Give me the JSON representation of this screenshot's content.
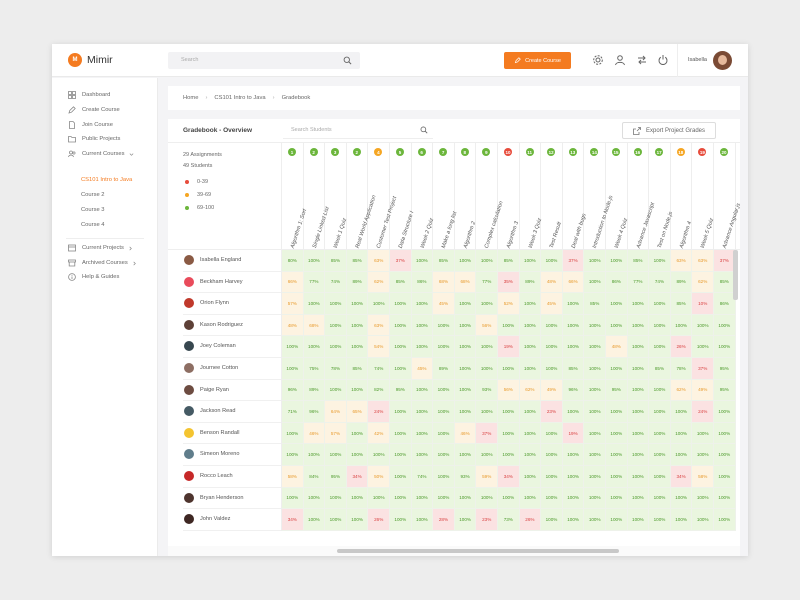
{
  "app": {
    "logo_letter": "M",
    "title": "Mimir"
  },
  "search": {
    "placeholder": "Search"
  },
  "header": {
    "create_label": "Create Course",
    "user_name": "Isabella"
  },
  "colors": {
    "accent": "#f47b20",
    "green": "#6cb63c",
    "orange": "#f5a623",
    "red": "#e74c3c"
  },
  "sidebar": {
    "items": [
      {
        "label": "Dashboard",
        "icon": "dashboard-icon"
      },
      {
        "label": "Create Course",
        "icon": "pen-icon"
      },
      {
        "label": "Join Course",
        "icon": "document-icon"
      },
      {
        "label": "Public Projects",
        "icon": "folder-icon"
      },
      {
        "label": "Current Courses",
        "icon": "users-icon"
      }
    ],
    "courses": [
      "CS101 Intro to Java",
      "Course 2",
      "Course 3",
      "Course 4"
    ],
    "bottom_items": [
      {
        "label": "Current Projects",
        "icon": "projects-icon"
      },
      {
        "label": "Archived Courses",
        "icon": "archive-icon"
      },
      {
        "label": "Help & Guides",
        "icon": "info-icon"
      }
    ]
  },
  "breadcrumb": [
    "Home",
    "CS101 Intro to Java",
    "Gradebook"
  ],
  "gradebook": {
    "title": "Gradebook - Overview",
    "search_placeholder": "Search Students",
    "export_label": "Export Project Grades",
    "assignments": "29 Assignments",
    "students": "49 Students",
    "legend": [
      {
        "label": "0-39",
        "color": "#e74c3c"
      },
      {
        "label": "39-69",
        "color": "#f5a623"
      },
      {
        "label": "69-100",
        "color": "#6cb63c"
      }
    ],
    "columns": [
      {
        "n": "1",
        "name": "Algorithm 1: Sort",
        "status": "g"
      },
      {
        "n": "2",
        "name": "Single Linked List",
        "status": "g"
      },
      {
        "n": "3",
        "name": "Week 1 Quiz",
        "status": "g"
      },
      {
        "n": "2",
        "name": "Real World Application",
        "status": "g"
      },
      {
        "n": "4",
        "name": "Customer Test Project",
        "status": "y"
      },
      {
        "n": "5",
        "name": "Data Structure I",
        "status": "g"
      },
      {
        "n": "6",
        "name": "Week 2 Quiz",
        "status": "g"
      },
      {
        "n": "7",
        "name": "Make a long list",
        "status": "g"
      },
      {
        "n": "8",
        "name": "Algorithm 2",
        "status": "g"
      },
      {
        "n": "9",
        "name": "Complex calculation",
        "status": "g"
      },
      {
        "n": "10",
        "name": "Algorithm 3",
        "status": "r"
      },
      {
        "n": "11",
        "name": "Week 3 Quiz",
        "status": "g"
      },
      {
        "n": "12",
        "name": "Test Result",
        "status": "g"
      },
      {
        "n": "13",
        "name": "Deal with bugs",
        "status": "g"
      },
      {
        "n": "14",
        "name": "Introduction to Node.js",
        "status": "g"
      },
      {
        "n": "15",
        "name": "Week 4 Quiz",
        "status": "g"
      },
      {
        "n": "16",
        "name": "Advance Javascript",
        "status": "g"
      },
      {
        "n": "17",
        "name": "Test on Node.js",
        "status": "g"
      },
      {
        "n": "18",
        "name": "Algorithm 4",
        "status": "y"
      },
      {
        "n": "19",
        "name": "Week 5 Quiz",
        "status": "r"
      },
      {
        "n": "20",
        "name": "Advance Angular.js",
        "status": "g"
      }
    ],
    "students_list": [
      {
        "name": "Isabella England",
        "avatar": "#8a5a44",
        "grades": [
          "80%",
          "100%",
          "85%",
          "85%",
          "63%",
          "37%",
          "100%",
          "85%",
          "100%",
          "100%",
          "85%",
          "100%",
          "100%",
          "37%",
          "100%",
          "100%",
          "85%",
          "100%",
          "63%",
          "63%",
          "37%"
        ]
      },
      {
        "name": "Beckham Harvey",
        "avatar": "#e94b5b",
        "grades": [
          "66%",
          "77%",
          "74%",
          "89%",
          "62%",
          "85%",
          "86%",
          "68%",
          "68%",
          "77%",
          "35%",
          "89%",
          "48%",
          "66%",
          "100%",
          "86%",
          "77%",
          "74%",
          "89%",
          "62%",
          "85%"
        ]
      },
      {
        "name": "Orion Flynn",
        "avatar": "#c0392b",
        "grades": [
          "57%",
          "100%",
          "100%",
          "100%",
          "100%",
          "100%",
          "100%",
          "45%",
          "100%",
          "100%",
          "52%",
          "100%",
          "45%",
          "100%",
          "85%",
          "100%",
          "100%",
          "100%",
          "85%",
          "10%",
          "86%"
        ]
      },
      {
        "name": "Kason Rodriguez",
        "avatar": "#5d4037",
        "grades": [
          "48%",
          "68%",
          "100%",
          "100%",
          "63%",
          "100%",
          "100%",
          "100%",
          "100%",
          "56%",
          "100%",
          "100%",
          "100%",
          "100%",
          "100%",
          "100%",
          "100%",
          "100%",
          "100%",
          "100%",
          "100%"
        ]
      },
      {
        "name": "Joey Coleman",
        "avatar": "#37474f",
        "grades": [
          "100%",
          "100%",
          "100%",
          "100%",
          "54%",
          "100%",
          "100%",
          "100%",
          "100%",
          "100%",
          "19%",
          "100%",
          "100%",
          "100%",
          "100%",
          "48%",
          "100%",
          "100%",
          "26%",
          "100%",
          "100%"
        ]
      },
      {
        "name": "Journee Cotton",
        "avatar": "#8d6e63",
        "grades": [
          "100%",
          "75%",
          "78%",
          "85%",
          "74%",
          "100%",
          "45%",
          "89%",
          "100%",
          "100%",
          "100%",
          "100%",
          "100%",
          "85%",
          "100%",
          "100%",
          "100%",
          "85%",
          "78%",
          "37%",
          "95%"
        ]
      },
      {
        "name": "Paige Ryan",
        "avatar": "#6d4c41",
        "grades": [
          "96%",
          "89%",
          "100%",
          "100%",
          "82%",
          "95%",
          "100%",
          "100%",
          "100%",
          "93%",
          "56%",
          "62%",
          "49%",
          "96%",
          "100%",
          "95%",
          "100%",
          "100%",
          "62%",
          "49%",
          "95%"
        ]
      },
      {
        "name": "Jackson Read",
        "avatar": "#455a64",
        "grades": [
          "71%",
          "96%",
          "64%",
          "65%",
          "24%",
          "100%",
          "100%",
          "100%",
          "100%",
          "100%",
          "100%",
          "100%",
          "23%",
          "100%",
          "100%",
          "100%",
          "100%",
          "100%",
          "100%",
          "24%",
          "100%"
        ]
      },
      {
        "name": "Benson Randall",
        "avatar": "#f4c430",
        "grades": [
          "100%",
          "46%",
          "57%",
          "100%",
          "42%",
          "100%",
          "100%",
          "100%",
          "46%",
          "37%",
          "100%",
          "100%",
          "100%",
          "19%",
          "100%",
          "100%",
          "100%",
          "100%",
          "100%",
          "100%",
          "100%"
        ]
      },
      {
        "name": "Simeon Moreno",
        "avatar": "#607d8b",
        "grades": [
          "100%",
          "100%",
          "100%",
          "100%",
          "100%",
          "100%",
          "100%",
          "100%",
          "100%",
          "100%",
          "100%",
          "100%",
          "100%",
          "100%",
          "100%",
          "100%",
          "100%",
          "100%",
          "100%",
          "100%",
          "100%"
        ]
      },
      {
        "name": "Rocco Leach",
        "avatar": "#c62828",
        "grades": [
          "58%",
          "84%",
          "95%",
          "34%",
          "50%",
          "100%",
          "74%",
          "100%",
          "93%",
          "59%",
          "34%",
          "100%",
          "100%",
          "100%",
          "100%",
          "100%",
          "100%",
          "100%",
          "34%",
          "58%",
          "100%"
        ]
      },
      {
        "name": "Bryan Henderson",
        "avatar": "#4e342e",
        "grades": [
          "100%",
          "100%",
          "100%",
          "100%",
          "100%",
          "100%",
          "100%",
          "100%",
          "100%",
          "100%",
          "100%",
          "100%",
          "100%",
          "100%",
          "100%",
          "100%",
          "100%",
          "100%",
          "100%",
          "100%",
          "100%"
        ]
      },
      {
        "name": "John Valdez",
        "avatar": "#3e2723",
        "grades": [
          "34%",
          "100%",
          "100%",
          "100%",
          "26%",
          "100%",
          "100%",
          "28%",
          "100%",
          "23%",
          "73%",
          "26%",
          "100%",
          "100%",
          "100%",
          "100%",
          "100%",
          "100%",
          "100%",
          "100%",
          "100%"
        ]
      }
    ]
  }
}
